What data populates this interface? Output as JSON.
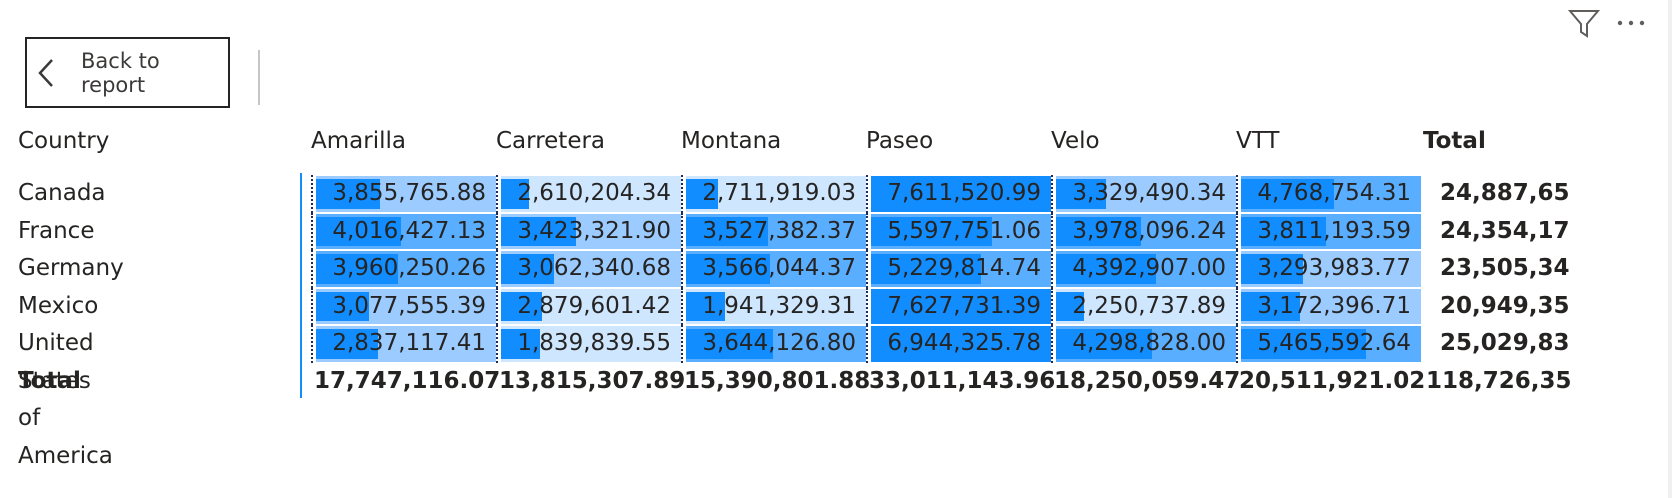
{
  "toolbar": {
    "back_label": "Back to report"
  },
  "matrix": {
    "row_header": "Country",
    "columns": [
      "Amarilla",
      "Carretera",
      "Montana",
      "Paseo",
      "Velo",
      "VTT"
    ],
    "total_header": "Total",
    "rows": [
      {
        "label": "Canada",
        "values": [
          "3,855,765.88",
          "2,610,204.34",
          "2,711,919.03",
          "7,611,520.99",
          "3,329,490.34",
          "4,768,754.31"
        ],
        "total": "24,887,65",
        "fills": [
          0.36,
          0.16,
          0.18,
          0.95,
          0.28,
          0.52
        ]
      },
      {
        "label": "France",
        "values": [
          "4,016,427.13",
          "3,423,321.90",
          "3,527,382.37",
          "5,597,751.06",
          "3,978,096.24",
          "3,811,193.59"
        ],
        "total": "24,354,17",
        "fills": [
          0.48,
          0.42,
          0.46,
          0.68,
          0.48,
          0.48
        ]
      },
      {
        "label": "Germany",
        "values": [
          "3,960,250.26",
          "3,062,340.68",
          "3,566,044.37",
          "5,229,814.74",
          "4,392,907.00",
          "3,293,983.77"
        ],
        "total": "23,505,34",
        "fills": [
          0.46,
          0.3,
          0.47,
          0.62,
          0.56,
          0.35
        ]
      },
      {
        "label": "Mexico",
        "values": [
          "3,077,555.39",
          "2,879,601.42",
          "1,941,329.31",
          "7,627,731.39",
          "2,250,737.89",
          "3,172,396.71"
        ],
        "total": "20,949,35",
        "fills": [
          0.3,
          0.23,
          0.22,
          0.96,
          0.16,
          0.33
        ]
      },
      {
        "label": "United States of America",
        "values": [
          "2,837,117.41",
          "1,839,839.55",
          "3,644,126.80",
          "6,944,325.78",
          "4,298,828.00",
          "5,465,592.64"
        ],
        "total": "25,029,83",
        "fills": [
          0.35,
          0.22,
          0.49,
          0.86,
          0.54,
          0.7
        ]
      }
    ],
    "total_row": {
      "label": "Total",
      "values": [
        "17,747,116.07",
        "13,815,307.89",
        "15,390,801.88",
        "33,011,143.96",
        "18,250,059.47",
        "20,511,921.02"
      ],
      "total": "118,726,35"
    }
  },
  "colors": {
    "bar": "#118dff",
    "accent": "#118dff",
    "cell_shades": [
      "#118dff",
      "#5aaeff",
      "#9ccbff",
      "#cfe6ff"
    ]
  },
  "icons": [
    "filter-icon",
    "more-options-icon",
    "chevron-left-icon"
  ]
}
